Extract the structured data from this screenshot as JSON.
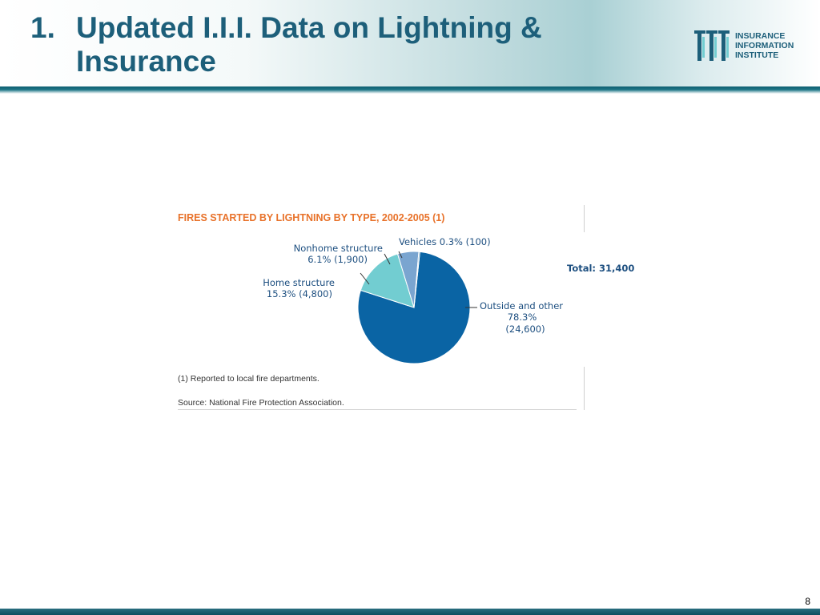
{
  "slide": {
    "number_label": "1.",
    "title_lines": [
      "Updated I.I.I. Data on Lightning &",
      "Insurance"
    ],
    "page_number": "8"
  },
  "logo": {
    "lines": [
      "INSURANCE",
      "INFORMATION",
      "INSTITUTE"
    ],
    "color": "#1d5f7a",
    "icon": "iii-logo-icon"
  },
  "colors": {
    "title": "#1d5f7a",
    "chart_title": "#e8722a",
    "outside": "#0a64a4",
    "home": "#72cdd1",
    "nonhome": "#7aa5d0",
    "vehicles": "#0a64a4"
  },
  "chart_data": {
    "type": "pie",
    "title": "FIRES STARTED BY LIGHTNING BY TYPE, 2002-2005 (1)",
    "total_label": "Total:  31,400",
    "slices": [
      {
        "name": "Outside and other",
        "percent": 78.3,
        "value": 24600,
        "pct_label": "78.3%",
        "val_label": "(24,600)",
        "color": "#0a64a4"
      },
      {
        "name": "Home structure",
        "percent": 15.3,
        "value": 4800,
        "label_line2": "15.3% (4,800)",
        "color": "#72cdd1"
      },
      {
        "name": "Nonhome structure",
        "percent": 6.1,
        "value": 1900,
        "label_line2": "6.1% (1,900)",
        "color": "#7aa5d0"
      },
      {
        "name": "Vehicles",
        "percent": 0.3,
        "value": 100,
        "label": "Vehicles 0.3% (100)",
        "color": "#0a64a4"
      }
    ],
    "footnote": "(1) Reported to local fire departments.",
    "source": "Source: National Fire Protection Association."
  }
}
